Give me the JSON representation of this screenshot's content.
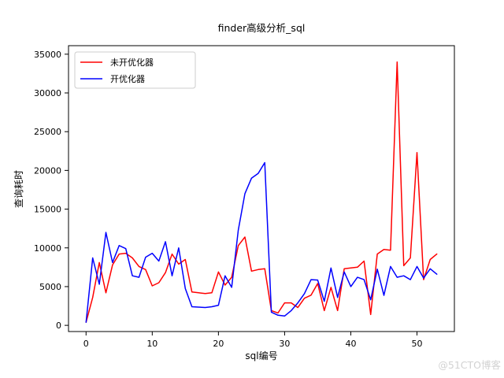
{
  "title": "finder高级分析_sql",
  "watermark": "@51CTO博客",
  "legend": {
    "items": [
      {
        "label": "未开优化器",
        "color": "#ff0000"
      },
      {
        "label": "开优化器",
        "color": "#0000ff"
      }
    ]
  },
  "axes": {
    "xlabel": "sql编号",
    "ylabel": "查询耗时"
  },
  "chart_data": {
    "type": "line",
    "title": "finder高级分析_sql",
    "xlabel": "sql编号",
    "ylabel": "查询耗时",
    "grid": false,
    "legend_position": "upper-left",
    "xlim": [
      -2.65,
      55.65
    ],
    "ylim": [
      -800,
      36100
    ],
    "x_ticks": [
      0,
      10,
      20,
      30,
      40,
      50
    ],
    "y_ticks": [
      0,
      5000,
      10000,
      15000,
      20000,
      25000,
      30000,
      35000
    ],
    "x": [
      0,
      1,
      2,
      3,
      4,
      5,
      6,
      7,
      8,
      9,
      10,
      11,
      12,
      13,
      14,
      15,
      16,
      17,
      18,
      19,
      20,
      21,
      22,
      23,
      24,
      25,
      26,
      27,
      28,
      29,
      30,
      31,
      32,
      33,
      34,
      35,
      36,
      37,
      38,
      39,
      40,
      41,
      42,
      43,
      44,
      45,
      46,
      47,
      48,
      49,
      50,
      51,
      52,
      53
    ],
    "series": [
      {
        "name": "未开优化器",
        "color": "#ff0000",
        "values": [
          400,
          3600,
          8100,
          4200,
          7800,
          9200,
          9300,
          8700,
          7600,
          7200,
          5100,
          5500,
          6800,
          9200,
          7900,
          8500,
          4300,
          4200,
          4100,
          4200,
          6900,
          5200,
          6200,
          10300,
          11400,
          7000,
          7200,
          7300,
          1900,
          1600,
          2900,
          2900,
          2300,
          3500,
          3900,
          5400,
          1900,
          4900,
          1900,
          7300,
          7400,
          7500,
          8300,
          1400,
          9200,
          9800,
          9700,
          34000,
          7700,
          8700,
          22300,
          5900,
          8500,
          9200
        ]
      },
      {
        "name": "开优化器",
        "color": "#0000ff",
        "values": [
          400,
          8700,
          5300,
          12000,
          8100,
          10300,
          9900,
          6400,
          6200,
          8800,
          9300,
          8300,
          10800,
          6400,
          10000,
          4750,
          2400,
          2350,
          2300,
          2400,
          2600,
          6400,
          4900,
          12300,
          17000,
          19000,
          19600,
          21000,
          1700,
          1300,
          1200,
          1900,
          2900,
          4100,
          5900,
          5850,
          3100,
          7400,
          3600,
          6900,
          5000,
          6200,
          5900,
          3300,
          7250,
          3870,
          7600,
          6200,
          6400,
          5900,
          7600,
          6100,
          7300,
          6600
        ]
      }
    ]
  }
}
